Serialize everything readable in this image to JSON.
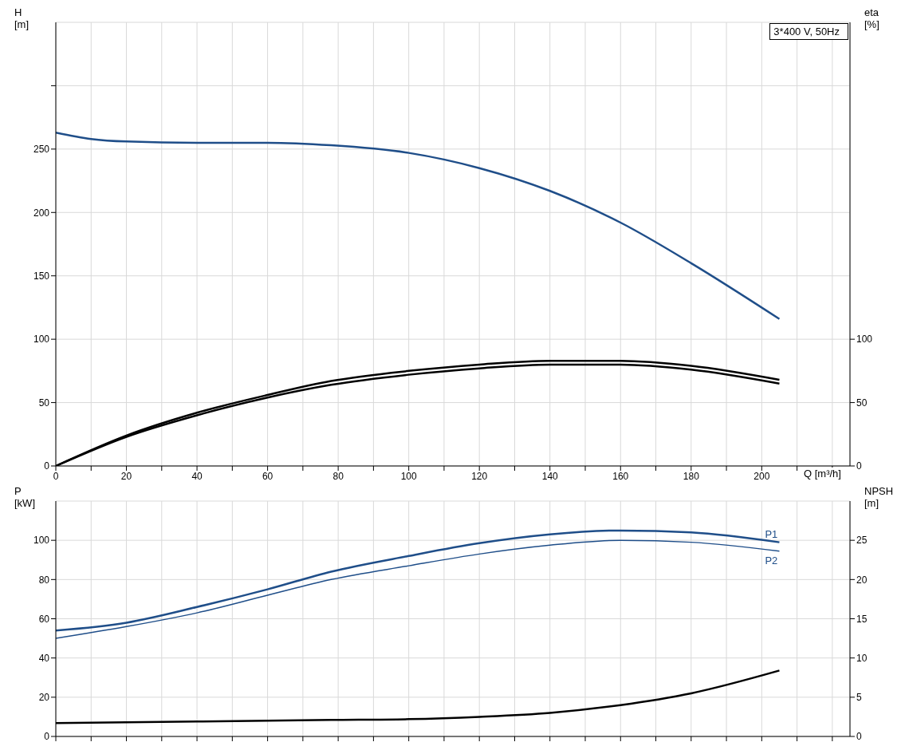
{
  "chart_data": [
    {
      "type": "line",
      "xlabel": "Q [m³/h]",
      "ylabel": "H\n[m]",
      "y2label": "eta\n[%]",
      "annotations": [
        "3*400 V, 50Hz"
      ],
      "xlim": [
        0,
        225
      ],
      "xticks": [
        0,
        {
          "value": 10,
          "label": null
        },
        20,
        {
          "value": 30,
          "label": null
        },
        40,
        {
          "value": 50,
          "label": null
        },
        60,
        {
          "value": 70,
          "label": null
        },
        80,
        {
          "value": 90,
          "label": null
        },
        100,
        {
          "value": 110,
          "label": null
        },
        120,
        {
          "value": 130,
          "label": null
        },
        140,
        {
          "value": 150,
          "label": null
        },
        160,
        {
          "value": 170,
          "label": null
        },
        180,
        {
          "value": 190,
          "label": null
        },
        200,
        {
          "value": 210,
          "label": null
        },
        {
          "value": 220,
          "label": null
        }
      ],
      "ylim": [
        0,
        350
      ],
      "yticks": [
        0,
        50,
        100,
        150,
        200,
        250,
        {
          "value": 300,
          "label": null
        }
      ],
      "y2lim": [
        0,
        350
      ],
      "y2ticks": [
        0,
        50,
        100
      ],
      "grid": true,
      "marker": "none",
      "series": [
        {
          "color": "#1f4e89",
          "x": [
            0,
            10,
            20,
            40,
            60,
            78,
            100,
            120,
            140,
            160,
            180,
            205
          ],
          "values": [
            263,
            258,
            256,
            255,
            255,
            253,
            247,
            235,
            217,
            192,
            160,
            116
          ]
        },
        {
          "color": "#000000",
          "axis": "y2",
          "x": [
            0,
            20,
            40,
            60,
            78,
            100,
            120,
            140,
            160,
            180,
            205
          ],
          "values": [
            0,
            24,
            42,
            56,
            67,
            75,
            80,
            83,
            83,
            79,
            68
          ]
        },
        {
          "color": "#000000",
          "axis": "y2",
          "x": [
            0,
            20,
            40,
            60,
            78,
            100,
            120,
            140,
            160,
            180,
            205
          ],
          "values": [
            0,
            23,
            40,
            54,
            64,
            72,
            77,
            80,
            80,
            76,
            65
          ]
        }
      ]
    },
    {
      "type": "line",
      "ylabel": "P\n[kW]",
      "y2label": "NPSH\n[m]",
      "tick_labels": "y",
      "xlim": [
        0,
        225
      ],
      "xticks": [
        0,
        10,
        20,
        30,
        40,
        50,
        60,
        70,
        80,
        90,
        100,
        110,
        120,
        130,
        140,
        150,
        160,
        170,
        180,
        190,
        200,
        210,
        220
      ],
      "ylim": [
        0,
        120
      ],
      "yticks": [
        0,
        20,
        40,
        60,
        80,
        100
      ],
      "y2lim": [
        0,
        30
      ],
      "y2ticks": [
        0,
        5,
        10,
        15,
        20,
        25
      ],
      "grid": true,
      "marker": "none",
      "series": [
        {
          "name": "P1",
          "color": "#1f4e89",
          "x": [
            0,
            20,
            40,
            60,
            78,
            100,
            120,
            140,
            160,
            180,
            205
          ],
          "values": [
            54,
            58,
            66,
            75,
            84,
            92,
            98.5,
            103,
            105,
            104,
            99
          ]
        },
        {
          "name": "P2",
          "color": "#1f4e89",
          "x": [
            0,
            20,
            40,
            60,
            78,
            100,
            120,
            140,
            160,
            180,
            205
          ],
          "values": [
            50,
            56,
            63,
            72,
            80,
            87,
            93,
            97.5,
            100,
            99,
            94.5
          ]
        },
        {
          "color": "#000000",
          "axis": "y2",
          "x": [
            0,
            40,
            78,
            100,
            120,
            140,
            160,
            180,
            205
          ],
          "values": [
            1.7,
            1.9,
            2.1,
            2.2,
            2.5,
            3.0,
            4.0,
            5.5,
            8.4
          ]
        }
      ]
    }
  ]
}
